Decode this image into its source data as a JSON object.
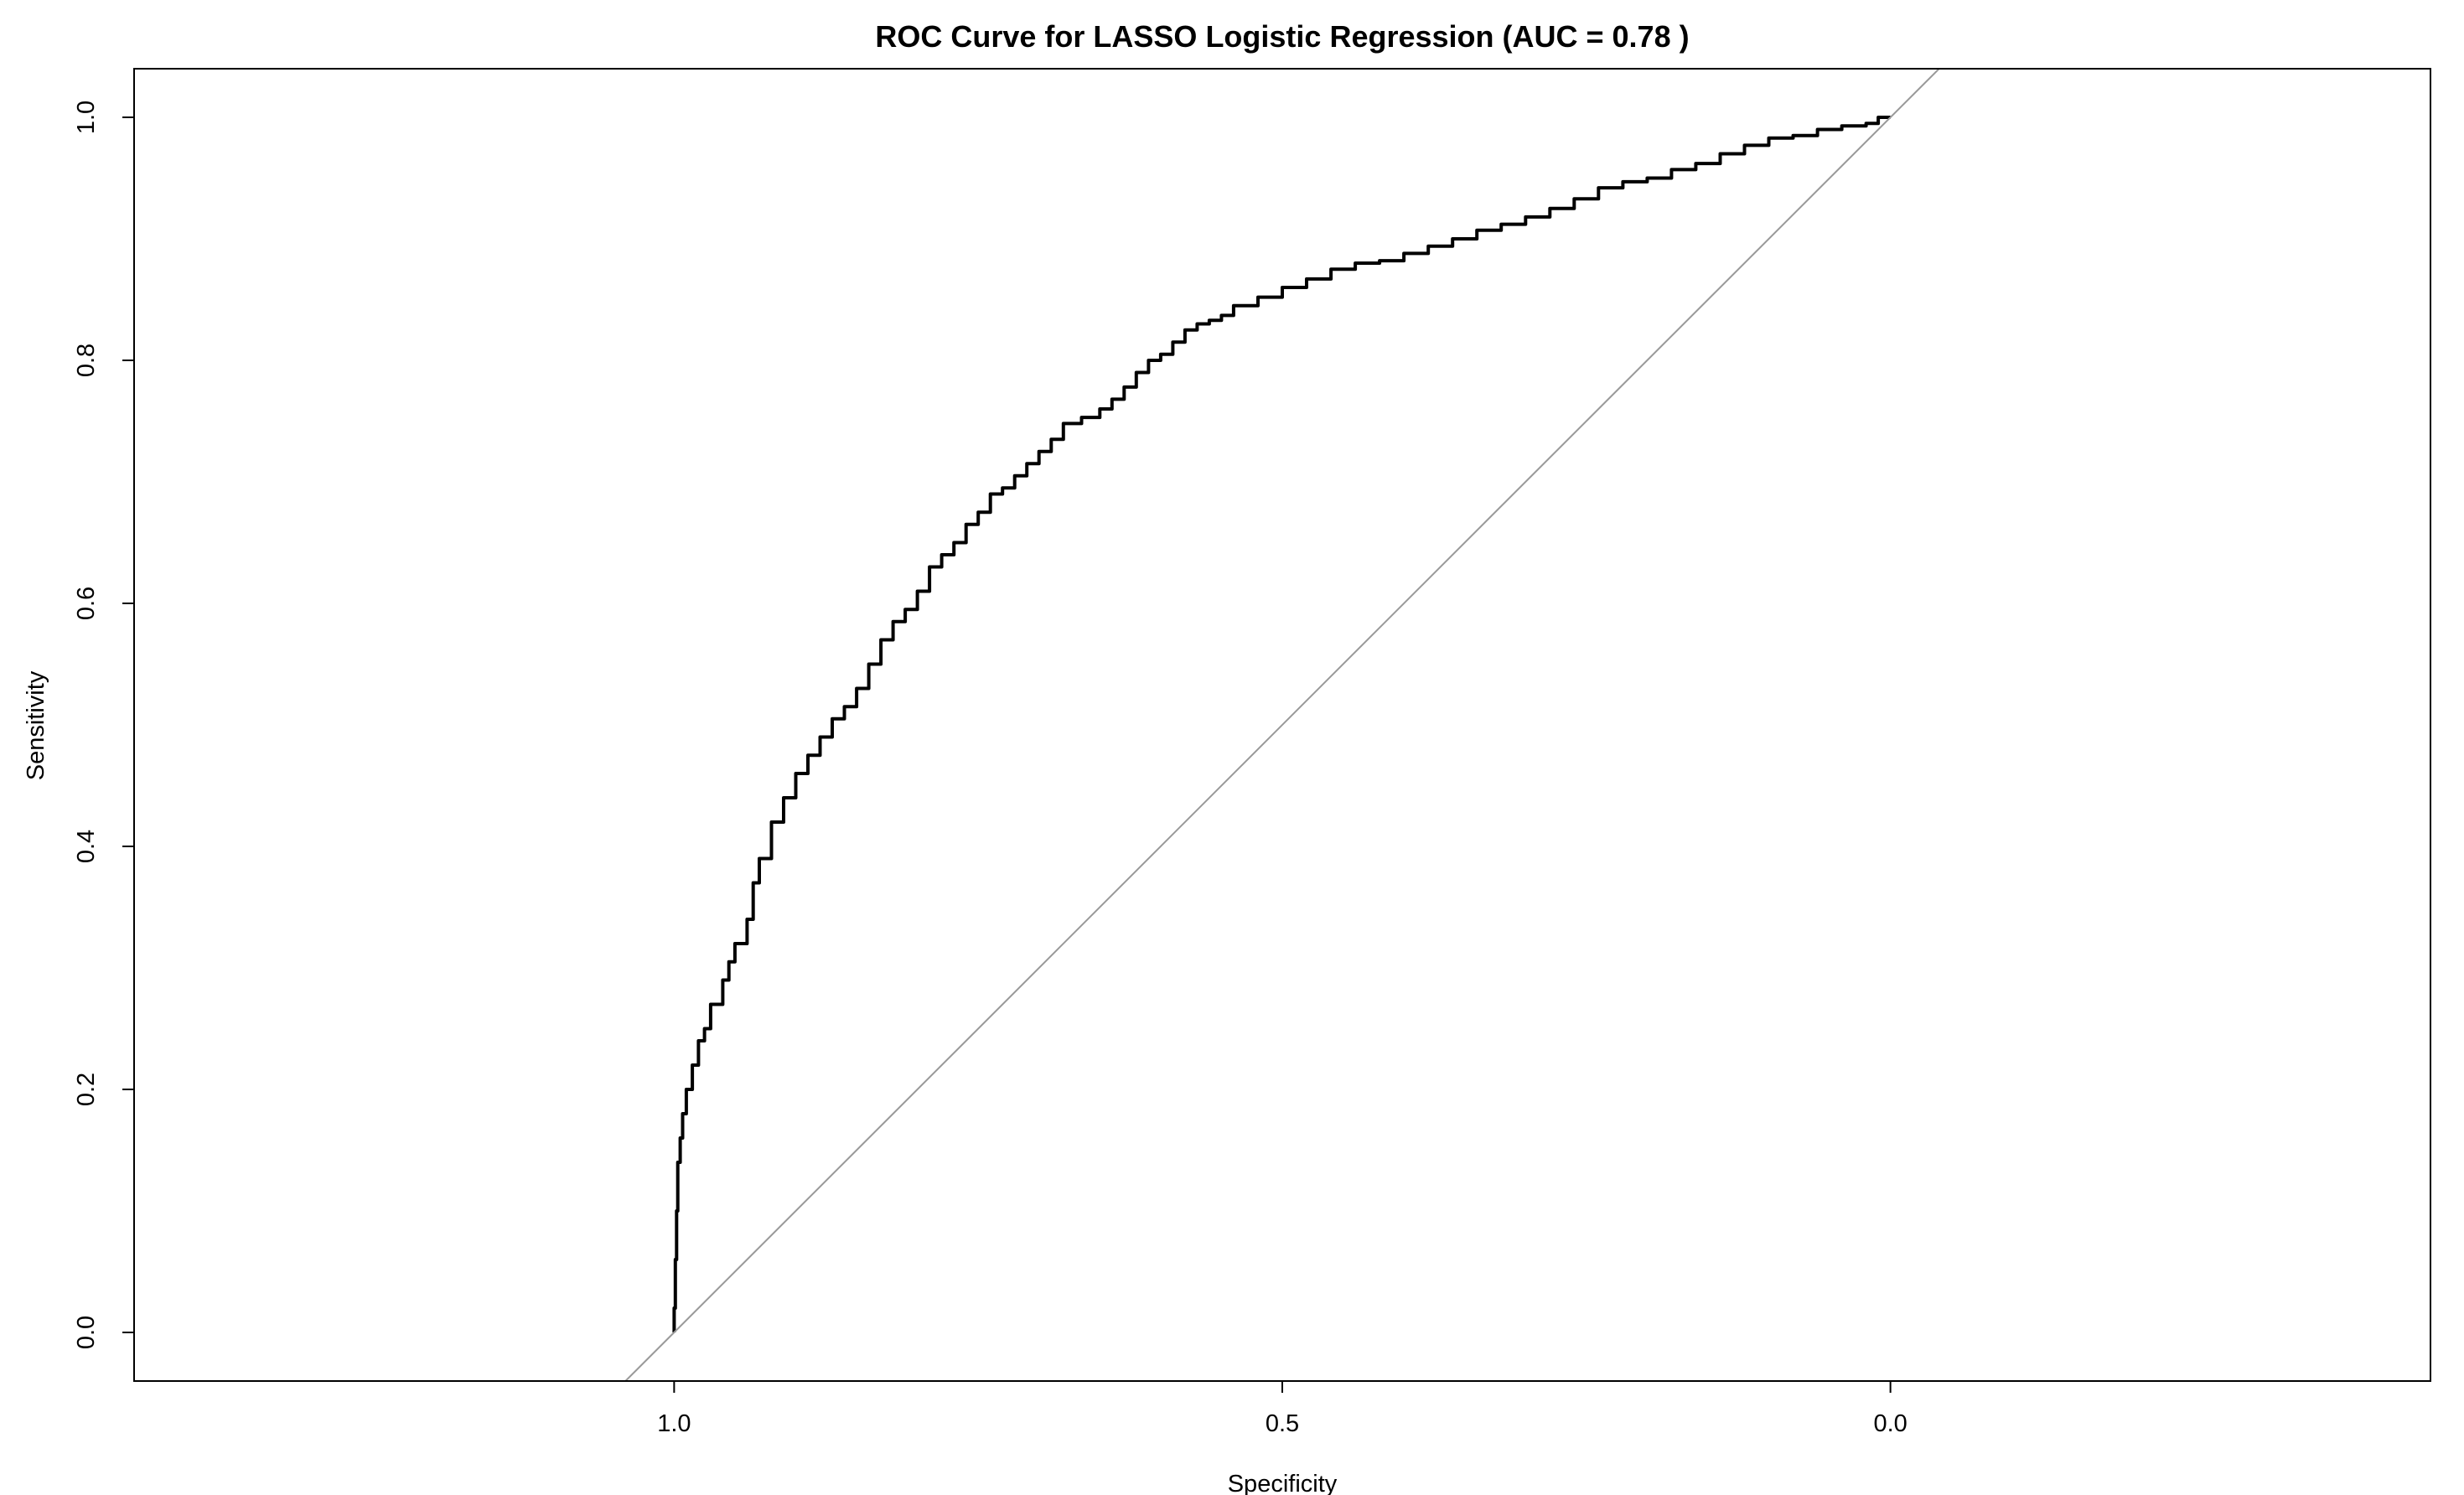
{
  "chart_data": {
    "type": "line",
    "title": "ROC Curve for LASSO Logistic Regression (AUC = 0.78 )",
    "xlabel": "Specificity",
    "ylabel": "Sensitivity",
    "x_reversed": true,
    "xlim": [
      1.444,
      -0.444
    ],
    "ylim": [
      -0.04,
      1.04
    ],
    "x_ticks": [
      1.0,
      0.5,
      0.0
    ],
    "x_tick_labels": [
      "1.0",
      "0.5",
      "0.0"
    ],
    "y_ticks": [
      0.0,
      0.2,
      0.4,
      0.6,
      0.8,
      1.0
    ],
    "y_tick_labels": [
      "0.0",
      "0.2",
      "0.4",
      "0.6",
      "0.8",
      "1.0"
    ],
    "grid": false,
    "series": [
      {
        "role": "roc-curve",
        "color": "#000000",
        "points": [
          [
            1.0,
            0.0
          ],
          [
            0.999,
            0.02
          ],
          [
            0.998,
            0.06
          ],
          [
            0.997,
            0.1
          ],
          [
            0.995,
            0.14
          ],
          [
            0.993,
            0.16
          ],
          [
            0.99,
            0.18
          ],
          [
            0.985,
            0.2
          ],
          [
            0.98,
            0.22
          ],
          [
            0.975,
            0.24
          ],
          [
            0.97,
            0.25
          ],
          [
            0.96,
            0.27
          ],
          [
            0.955,
            0.29
          ],
          [
            0.95,
            0.305
          ],
          [
            0.94,
            0.32
          ],
          [
            0.935,
            0.34
          ],
          [
            0.93,
            0.37
          ],
          [
            0.92,
            0.39
          ],
          [
            0.91,
            0.42
          ],
          [
            0.9,
            0.44
          ],
          [
            0.89,
            0.46
          ],
          [
            0.88,
            0.475
          ],
          [
            0.87,
            0.49
          ],
          [
            0.86,
            0.505
          ],
          [
            0.85,
            0.515
          ],
          [
            0.84,
            0.53
          ],
          [
            0.83,
            0.55
          ],
          [
            0.82,
            0.57
          ],
          [
            0.81,
            0.585
          ],
          [
            0.8,
            0.595
          ],
          [
            0.79,
            0.61
          ],
          [
            0.78,
            0.63
          ],
          [
            0.77,
            0.64
          ],
          [
            0.76,
            0.65
          ],
          [
            0.75,
            0.665
          ],
          [
            0.74,
            0.675
          ],
          [
            0.73,
            0.69
          ],
          [
            0.72,
            0.695
          ],
          [
            0.71,
            0.705
          ],
          [
            0.7,
            0.715
          ],
          [
            0.69,
            0.725
          ],
          [
            0.68,
            0.735
          ],
          [
            0.665,
            0.748
          ],
          [
            0.65,
            0.753
          ],
          [
            0.64,
            0.76
          ],
          [
            0.63,
            0.768
          ],
          [
            0.62,
            0.778
          ],
          [
            0.61,
            0.79
          ],
          [
            0.6,
            0.8
          ],
          [
            0.59,
            0.805
          ],
          [
            0.58,
            0.815
          ],
          [
            0.57,
            0.825
          ],
          [
            0.56,
            0.83
          ],
          [
            0.55,
            0.833
          ],
          [
            0.54,
            0.837
          ],
          [
            0.52,
            0.845
          ],
          [
            0.5,
            0.852
          ],
          [
            0.48,
            0.86
          ],
          [
            0.46,
            0.867
          ],
          [
            0.44,
            0.875
          ],
          [
            0.42,
            0.88
          ],
          [
            0.4,
            0.882
          ],
          [
            0.38,
            0.888
          ],
          [
            0.36,
            0.894
          ],
          [
            0.34,
            0.9
          ],
          [
            0.32,
            0.907
          ],
          [
            0.3,
            0.912
          ],
          [
            0.28,
            0.918
          ],
          [
            0.26,
            0.925
          ],
          [
            0.24,
            0.933
          ],
          [
            0.22,
            0.942
          ],
          [
            0.2,
            0.947
          ],
          [
            0.18,
            0.95
          ],
          [
            0.16,
            0.957
          ],
          [
            0.14,
            0.962
          ],
          [
            0.12,
            0.97
          ],
          [
            0.1,
            0.977
          ],
          [
            0.08,
            0.983
          ],
          [
            0.06,
            0.985
          ],
          [
            0.04,
            0.99
          ],
          [
            0.02,
            0.993
          ],
          [
            0.01,
            0.995
          ],
          [
            0.0,
            1.0
          ]
        ]
      },
      {
        "role": "chance-diagonal",
        "color": "#999999",
        "points": [
          [
            1.04,
            -0.04
          ],
          [
            -0.04,
            1.04
          ]
        ]
      }
    ]
  }
}
